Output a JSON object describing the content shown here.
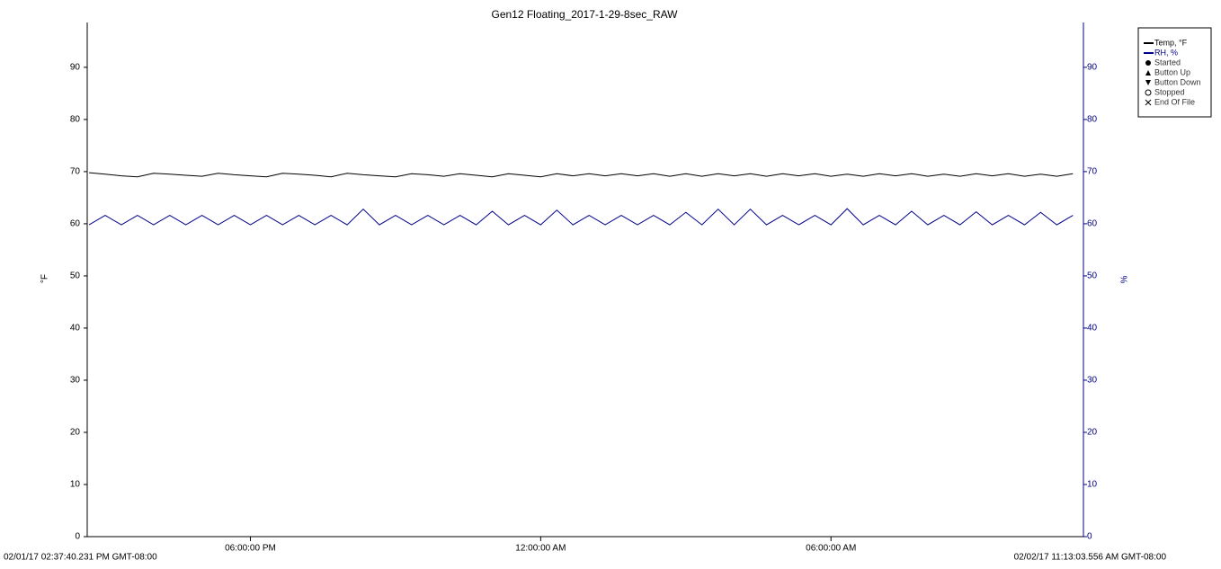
{
  "chart_data": {
    "type": "line",
    "title": "Gen12 Floating_2017-1-29-8sec_RAW",
    "y_label": "°F",
    "y2_label": "%",
    "xlim": [
      {
        "value": "2017-02-01 14:37:40",
        "label": "02/01/17 02:37:40.231 PM GMT-08:00"
      },
      {
        "value": "2017-02-02 11:13:03",
        "label": "02/02/17 11:13:03.556 AM GMT-08:00"
      }
    ],
    "xticks": [
      {
        "value": "2017-02-01 18:00",
        "label": "06:00:00 PM"
      },
      {
        "value": "2017-02-02 00:00",
        "label": "12:00:00 AM"
      },
      {
        "value": "2017-02-02 06:00",
        "label": "06:00:00 AM"
      }
    ],
    "ylim": [
      0,
      98.6
    ],
    "yticks": [
      0,
      10,
      20,
      30,
      40,
      50,
      60,
      70,
      80,
      90
    ],
    "y2lim": [
      0,
      98.6
    ],
    "y2ticks": [
      0,
      10,
      20,
      30,
      40,
      50,
      60,
      70,
      80,
      90
    ],
    "x": [
      "2017-02-01 14:40",
      "2017-02-01 15:00",
      "2017-02-01 15:20",
      "2017-02-01 15:40",
      "2017-02-01 16:00",
      "2017-02-01 16:20",
      "2017-02-01 16:40",
      "2017-02-01 17:00",
      "2017-02-01 17:20",
      "2017-02-01 17:40",
      "2017-02-01 18:00",
      "2017-02-01 18:20",
      "2017-02-01 18:40",
      "2017-02-01 19:00",
      "2017-02-01 19:20",
      "2017-02-01 19:40",
      "2017-02-01 20:00",
      "2017-02-01 20:20",
      "2017-02-01 20:40",
      "2017-02-01 21:00",
      "2017-02-01 21:20",
      "2017-02-01 21:40",
      "2017-02-01 22:00",
      "2017-02-01 22:20",
      "2017-02-01 22:40",
      "2017-02-01 23:00",
      "2017-02-01 23:20",
      "2017-02-01 23:40",
      "2017-02-02 00:00",
      "2017-02-02 00:20",
      "2017-02-02 00:40",
      "2017-02-02 01:00",
      "2017-02-02 01:20",
      "2017-02-02 01:40",
      "2017-02-02 02:00",
      "2017-02-02 02:20",
      "2017-02-02 02:40",
      "2017-02-02 03:00",
      "2017-02-02 03:20",
      "2017-02-02 03:40",
      "2017-02-02 04:00",
      "2017-02-02 04:20",
      "2017-02-02 04:40",
      "2017-02-02 05:00",
      "2017-02-02 05:20",
      "2017-02-02 05:40",
      "2017-02-02 06:00",
      "2017-02-02 06:20",
      "2017-02-02 06:40",
      "2017-02-02 07:00",
      "2017-02-02 07:20",
      "2017-02-02 07:40",
      "2017-02-02 08:00",
      "2017-02-02 08:20",
      "2017-02-02 08:40",
      "2017-02-02 09:00",
      "2017-02-02 09:20",
      "2017-02-02 09:40",
      "2017-02-02 10:00",
      "2017-02-02 10:20",
      "2017-02-02 10:40",
      "2017-02-02 11:00"
    ],
    "series": [
      {
        "name": "Temp, °F",
        "color": "#000000",
        "values": [
          69.8,
          69.5,
          69.2,
          69.0,
          69.7,
          69.5,
          69.3,
          69.1,
          69.7,
          69.4,
          69.2,
          69.0,
          69.7,
          69.5,
          69.3,
          69.0,
          69.7,
          69.4,
          69.2,
          69.0,
          69.6,
          69.4,
          69.1,
          69.6,
          69.3,
          69.0,
          69.6,
          69.3,
          69.0,
          69.6,
          69.2,
          69.6,
          69.2,
          69.6,
          69.2,
          69.6,
          69.1,
          69.6,
          69.1,
          69.6,
          69.2,
          69.6,
          69.1,
          69.6,
          69.2,
          69.6,
          69.1,
          69.5,
          69.1,
          69.6,
          69.2,
          69.6,
          69.1,
          69.5,
          69.1,
          69.6,
          69.2,
          69.6,
          69.1,
          69.5,
          69.1,
          69.6
        ]
      },
      {
        "name": "RH, %",
        "color": "#00008b",
        "axis": "y2",
        "values": [
          59.8,
          61.6,
          59.8,
          61.6,
          59.8,
          61.6,
          59.8,
          61.6,
          59.8,
          61.6,
          59.8,
          61.6,
          59.8,
          61.6,
          59.8,
          61.6,
          59.8,
          62.8,
          59.8,
          61.6,
          59.8,
          61.6,
          59.8,
          61.6,
          59.8,
          62.4,
          59.8,
          61.6,
          59.8,
          62.6,
          59.8,
          61.6,
          59.8,
          61.6,
          59.8,
          61.6,
          59.8,
          62.2,
          59.8,
          62.8,
          59.8,
          62.8,
          59.8,
          61.6,
          59.8,
          61.6,
          59.8,
          62.9,
          59.8,
          61.6,
          59.8,
          62.4,
          59.8,
          61.6,
          59.8,
          62.3,
          59.8,
          61.6,
          59.8,
          62.2,
          59.8,
          61.6
        ]
      }
    ],
    "markers": [
      {
        "name": "Started",
        "symbol": "filled-circle"
      },
      {
        "name": "Button Up",
        "symbol": "triangle-up"
      },
      {
        "name": "Button Down",
        "symbol": "triangle-down"
      },
      {
        "name": "Stopped",
        "symbol": "open-circle"
      },
      {
        "name": "End Of File",
        "symbol": "cross"
      }
    ]
  }
}
